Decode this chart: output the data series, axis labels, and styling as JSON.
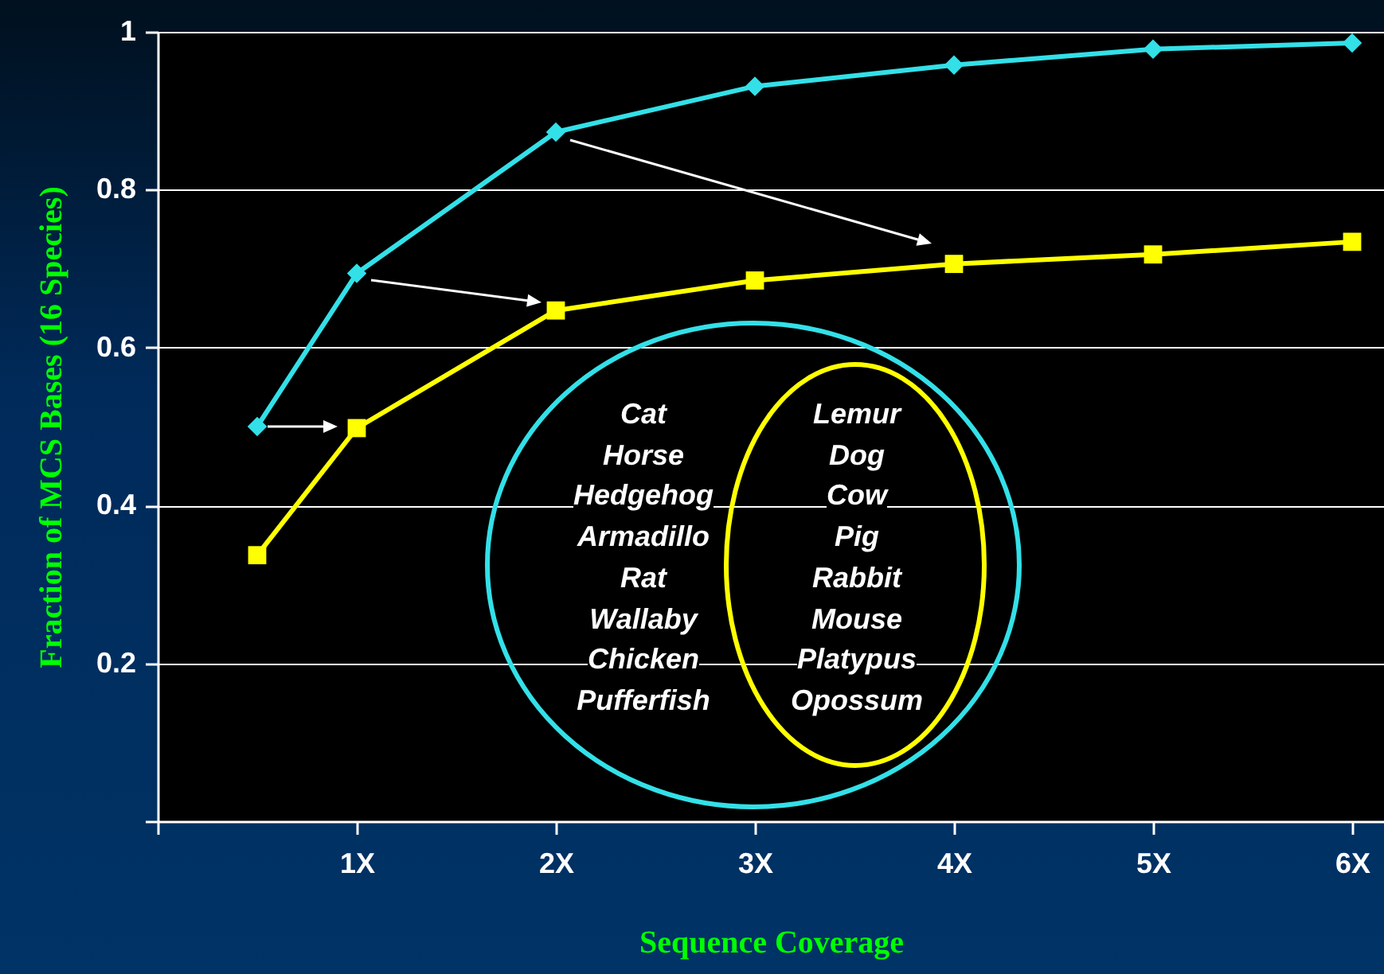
{
  "chart_data": {
    "type": "line",
    "xlabel": "Sequence Coverage",
    "ylabel": "Fraction of MCS Bases (16 Species)",
    "x": [
      0.5,
      1,
      2,
      3,
      4,
      5,
      6
    ],
    "series": [
      {
        "color": "#33e0e8",
        "marker": "diamond",
        "values": [
          0.5,
          0.694,
          0.873,
          0.931,
          0.958,
          0.978,
          0.986
        ]
      },
      {
        "color": "#ffff00",
        "marker": "square",
        "values": [
          0.337,
          0.498,
          0.647,
          0.685,
          0.706,
          0.718,
          0.734
        ]
      }
    ],
    "xlim": [
      0,
      6.16
    ],
    "ylim": [
      0,
      1
    ],
    "xticks": [
      {
        "value": 0,
        "label": null
      },
      {
        "value": 1,
        "label": "1X"
      },
      {
        "value": 2,
        "label": "2X"
      },
      {
        "value": 3,
        "label": "3X"
      },
      {
        "value": 4,
        "label": "4X"
      },
      {
        "value": 5,
        "label": "5X"
      },
      {
        "value": 6,
        "label": "6X"
      }
    ],
    "yticks": [
      {
        "value": 0,
        "label": null
      },
      0.2,
      0.4,
      0.6,
      0.8,
      1
    ],
    "grid": "y",
    "annotations": [
      "Cat",
      "Horse",
      "Hedgehog",
      "Armadillo",
      "Rat",
      "Wallaby",
      "Chicken",
      "Pufferfish",
      "Lemur",
      "Dog",
      "Cow",
      "Pig",
      "Rabbit",
      "Mouse",
      "Platypus",
      "Opossum"
    ]
  }
}
